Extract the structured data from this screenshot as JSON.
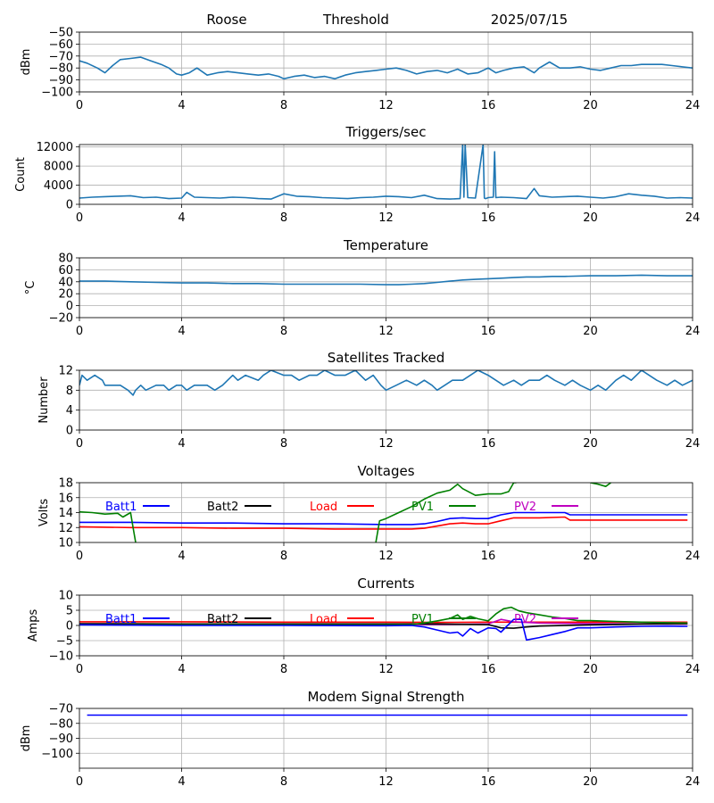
{
  "header": {
    "station": "Roose",
    "label": "Threshold",
    "date": "2025/07/15"
  },
  "chart_data": [
    {
      "id": "signal",
      "type": "line",
      "title": "",
      "xlabel": "",
      "ylabel": "dBm",
      "xlim": [
        0,
        24
      ],
      "ylim": [
        -100,
        -50
      ],
      "xticks": [
        "0",
        "4",
        "8",
        "12",
        "16",
        "20",
        "24"
      ],
      "yticks": [
        "-50",
        "-60",
        "-70",
        "-80",
        "-90",
        "-100"
      ],
      "grid": true,
      "series": [
        {
          "color": "#1f77b4",
          "x": [
            0,
            0.3,
            0.7,
            1,
            1.3,
            1.6,
            2,
            2.4,
            2.8,
            3.2,
            3.5,
            3.8,
            4,
            4.3,
            4.6,
            5,
            5.4,
            5.8,
            6.2,
            6.6,
            7,
            7.4,
            7.8,
            8,
            8.4,
            8.8,
            9.2,
            9.6,
            10,
            10.4,
            10.8,
            11.2,
            11.6,
            12,
            12.4,
            12.8,
            13.2,
            13.6,
            14,
            14.4,
            14.8,
            15.2,
            15.6,
            16,
            16.3,
            16.6,
            17,
            17.4,
            17.8,
            18,
            18.4,
            18.8,
            19.2,
            19.6,
            20,
            20.4,
            20.8,
            21.2,
            21.6,
            22,
            22.4,
            22.8,
            23.2,
            23.6,
            24
          ],
          "y": [
            -74,
            -76,
            -80,
            -84,
            -78,
            -73,
            -72,
            -71,
            -74,
            -77,
            -80,
            -85,
            -86,
            -84,
            -80,
            -86,
            -84,
            -83,
            -84,
            -85,
            -86,
            -85,
            -87,
            -89,
            -87,
            -86,
            -88,
            -87,
            -89,
            -86,
            -84,
            -83,
            -82,
            -81,
            -80,
            -82,
            -85,
            -83,
            -82,
            -84,
            -81,
            -85,
            -84,
            -80,
            -84,
            -82,
            -80,
            -79,
            -84,
            -80,
            -75,
            -80,
            -80,
            -79,
            -81,
            -82,
            -80,
            -78,
            -78,
            -77,
            -77,
            -77,
            -78,
            -79,
            -80
          ]
        }
      ]
    },
    {
      "id": "triggers",
      "type": "line",
      "title": "Triggers/sec",
      "xlabel": "",
      "ylabel": "Count",
      "xlim": [
        0,
        24
      ],
      "ylim": [
        0,
        12500
      ],
      "xticks": [
        "0",
        "4",
        "8",
        "12",
        "16",
        "20",
        "24"
      ],
      "yticks": [
        "0",
        "4000",
        "8000",
        "12000"
      ],
      "grid": true,
      "series": [
        {
          "color": "#1f77b4",
          "x": [
            0,
            0.5,
            1,
            1.5,
            2,
            2.5,
            3,
            3.5,
            4,
            4.2,
            4.5,
            5,
            5.5,
            6,
            6.5,
            7,
            7.5,
            8,
            8.5,
            9,
            9.5,
            10,
            10.5,
            11,
            11.5,
            12,
            12.5,
            13,
            13.5,
            14,
            14.5,
            14.9,
            15,
            15.05,
            15.1,
            15.2,
            15.5,
            15.8,
            15.85,
            15.9,
            16,
            16.2,
            16.25,
            16.3,
            16.5,
            17,
            17.5,
            17.8,
            18,
            18.5,
            19,
            19.5,
            20,
            20.5,
            21,
            21.5,
            22,
            22.5,
            23,
            23.5,
            24
          ],
          "y": [
            1300,
            1500,
            1600,
            1700,
            1800,
            1400,
            1500,
            1200,
            1300,
            2500,
            1500,
            1400,
            1300,
            1500,
            1400,
            1200,
            1100,
            2200,
            1700,
            1600,
            1400,
            1300,
            1200,
            1400,
            1500,
            1700,
            1600,
            1400,
            1900,
            1200,
            1100,
            1200,
            12500,
            1500,
            12500,
            1400,
            1300,
            12500,
            1300,
            1200,
            1400,
            1500,
            11000,
            1400,
            1500,
            1400,
            1200,
            3300,
            1800,
            1500,
            1600,
            1700,
            1500,
            1300,
            1600,
            2200,
            1900,
            1700,
            1300,
            1400,
            1300
          ]
        }
      ]
    },
    {
      "id": "temperature",
      "type": "line",
      "title": "Temperature",
      "xlabel": "",
      "ylabel": "°C",
      "xlim": [
        0,
        24
      ],
      "ylim": [
        -20,
        80
      ],
      "xticks": [
        "0",
        "4",
        "8",
        "12",
        "16",
        "20",
        "24"
      ],
      "yticks": [
        "-20",
        "0",
        "20",
        "40",
        "60",
        "80"
      ],
      "grid": true,
      "series": [
        {
          "color": "#1f77b4",
          "x": [
            0,
            1,
            2,
            3,
            4,
            5,
            6,
            7,
            8,
            9,
            10,
            11,
            12,
            12.5,
            13,
            13.5,
            14,
            14.5,
            15,
            15.5,
            16,
            16.5,
            17,
            17.5,
            18,
            18.5,
            19,
            20,
            21,
            22,
            23,
            24
          ],
          "y": [
            41,
            41,
            40,
            39,
            38,
            38,
            37,
            37,
            36,
            36,
            36,
            36,
            35,
            35,
            36,
            37,
            39,
            41,
            43,
            44,
            45,
            46,
            47,
            48,
            48,
            49,
            49,
            50,
            50,
            51,
            50,
            50
          ]
        }
      ]
    },
    {
      "id": "satellites",
      "type": "line",
      "title": "Satellites Tracked",
      "xlabel": "",
      "ylabel": "Number",
      "xlim": [
        0,
        24
      ],
      "ylim": [
        0,
        12
      ],
      "xticks": [
        "0",
        "4",
        "8",
        "12",
        "16",
        "20",
        "24"
      ],
      "yticks": [
        "0",
        "4",
        "8",
        "12"
      ],
      "grid": true,
      "series": [
        {
          "color": "#1f77b4",
          "x": [
            0,
            0.1,
            0.3,
            0.6,
            0.9,
            1,
            1.3,
            1.6,
            1.9,
            2.1,
            2.2,
            2.4,
            2.6,
            3,
            3.3,
            3.5,
            3.8,
            4,
            4.2,
            4.5,
            5,
            5.3,
            5.6,
            5.8,
            6,
            6.2,
            6.5,
            7,
            7.2,
            7.5,
            8,
            8.3,
            8.6,
            9,
            9.3,
            9.6,
            10,
            10.4,
            10.8,
            11.2,
            11.5,
            11.8,
            12,
            12.4,
            12.8,
            13.2,
            13.5,
            13.8,
            14,
            14.3,
            14.6,
            15,
            15.3,
            15.6,
            16,
            16.3,
            16.6,
            17,
            17.3,
            17.6,
            18,
            18.3,
            18.6,
            19,
            19.3,
            19.6,
            20,
            20.3,
            20.6,
            21,
            21.3,
            21.6,
            22,
            22.3,
            22.6,
            23,
            23.3,
            23.6,
            24
          ],
          "y": [
            9,
            11,
            10,
            11,
            10,
            9,
            9,
            9,
            8,
            7,
            8,
            9,
            8,
            9,
            9,
            8,
            9,
            9,
            8,
            9,
            9,
            8,
            9,
            10,
            11,
            10,
            11,
            10,
            11,
            12,
            11,
            11,
            10,
            11,
            11,
            12,
            11,
            11,
            12,
            10,
            11,
            9,
            8,
            9,
            10,
            9,
            10,
            9,
            8,
            9,
            10,
            10,
            11,
            12,
            11,
            10,
            9,
            10,
            9,
            10,
            10,
            11,
            10,
            9,
            10,
            9,
            8,
            9,
            8,
            10,
            11,
            10,
            12,
            11,
            10,
            9,
            10,
            9,
            10
          ]
        }
      ]
    },
    {
      "id": "voltages",
      "type": "line",
      "title": "Voltages",
      "xlabel": "",
      "ylabel": "Volts",
      "xlim": [
        0,
        24
      ],
      "ylim": [
        10,
        18
      ],
      "xticks": [
        "0",
        "4",
        "8",
        "12",
        "16",
        "20",
        "24"
      ],
      "yticks": [
        "10",
        "12",
        "14",
        "16",
        "18"
      ],
      "grid": true,
      "legend": [
        {
          "name": "Batt1",
          "color": "#0000ff"
        },
        {
          "name": "Batt2",
          "color": "#000000"
        },
        {
          "name": "Load",
          "color": "#ff0000"
        },
        {
          "name": "PV1",
          "color": "#008000"
        },
        {
          "name": "PV2",
          "color": "#bf00bf"
        }
      ],
      "series": [
        {
          "name": "Batt1",
          "color": "#0000ff",
          "x": [
            0,
            2,
            4,
            6,
            8,
            10,
            12,
            13,
            13.5,
            14,
            14.5,
            15,
            15.5,
            16,
            16.5,
            17,
            18,
            19,
            19.2,
            20,
            21,
            22,
            23,
            23.8
          ],
          "y": [
            12.7,
            12.7,
            12.6,
            12.6,
            12.5,
            12.5,
            12.4,
            12.4,
            12.5,
            12.8,
            13.2,
            13.3,
            13.2,
            13.2,
            13.7,
            14.0,
            14.0,
            14.0,
            13.7,
            13.7,
            13.7,
            13.7,
            13.7,
            13.7
          ]
        },
        {
          "name": "Load",
          "color": "#ff0000",
          "x": [
            0,
            2,
            4,
            6,
            8,
            10,
            12,
            13,
            13.5,
            14,
            14.5,
            15,
            15.5,
            16,
            16.5,
            17,
            18,
            19,
            19.2,
            20,
            21,
            22,
            23,
            23.8
          ],
          "y": [
            12.1,
            12.0,
            12.0,
            11.9,
            11.9,
            11.8,
            11.8,
            11.8,
            11.9,
            12.2,
            12.5,
            12.6,
            12.5,
            12.5,
            12.9,
            13.3,
            13.3,
            13.4,
            13.0,
            13.0,
            13.0,
            13.0,
            13.0,
            13.0
          ]
        },
        {
          "name": "PV1",
          "color": "#008000",
          "x": [
            0,
            0.5,
            1,
            1.5,
            1.7,
            2,
            2.1,
            2.2
          ],
          "y": [
            14.1,
            14.0,
            13.8,
            13.9,
            13.4,
            14.0,
            12.0,
            10.0
          ]
        },
        {
          "name": "PV1",
          "color": "#008000",
          "x": [
            11.6,
            11.75,
            12,
            12.5,
            13,
            13.5,
            14,
            14.5,
            14.8,
            15,
            15.5,
            16,
            16.5,
            16.8,
            17,
            17.1
          ],
          "y": [
            10.0,
            12.9,
            13.2,
            14.0,
            14.8,
            15.8,
            16.6,
            17.0,
            17.8,
            17.2,
            16.3,
            16.5,
            16.5,
            16.8,
            18.0,
            18.0
          ]
        },
        {
          "name": "PV1",
          "color": "#008000",
          "x": [
            20.0,
            20.3,
            20.6,
            20.8
          ],
          "y": [
            18.0,
            17.8,
            17.5,
            18.0
          ]
        }
      ]
    },
    {
      "id": "currents",
      "type": "line",
      "title": "Currents",
      "xlabel": "",
      "ylabel": "Amps",
      "xlim": [
        0,
        24
      ],
      "ylim": [
        -10,
        10
      ],
      "xticks": [
        "0",
        "4",
        "8",
        "12",
        "16",
        "20",
        "24"
      ],
      "yticks": [
        "-10",
        "-5",
        "0",
        "5",
        "10"
      ],
      "grid": true,
      "legend": [
        {
          "name": "Batt1",
          "color": "#0000ff"
        },
        {
          "name": "Batt2",
          "color": "#000000"
        },
        {
          "name": "Load",
          "color": "#ff0000"
        },
        {
          "name": "PV1",
          "color": "#008000"
        },
        {
          "name": "PV2",
          "color": "#bf00bf"
        }
      ],
      "series": [
        {
          "name": "Load",
          "color": "#ff0000",
          "x": [
            0,
            4,
            8,
            12,
            14,
            16,
            18,
            20,
            22,
            23.8
          ],
          "y": [
            1.2,
            1.2,
            1.1,
            1.1,
            1.0,
            1.1,
            1.1,
            1.1,
            1.1,
            1.1
          ]
        },
        {
          "name": "PV2",
          "color": "#bf00bf",
          "x": [
            0,
            4,
            8,
            12,
            14,
            16,
            16.5,
            17,
            18,
            20,
            22,
            23.8
          ],
          "y": [
            0.5,
            0.4,
            0.4,
            0.3,
            0.3,
            0.5,
            2.0,
            1.2,
            0.8,
            0.6,
            0.5,
            0.5
          ]
        },
        {
          "name": "Batt2",
          "color": "#000000",
          "x": [
            0,
            4,
            8,
            12,
            14,
            16,
            16.5,
            17,
            17.5,
            18,
            20,
            22,
            23.8
          ],
          "y": [
            0.6,
            0.5,
            0.5,
            0.5,
            0.5,
            0.3,
            -0.8,
            -0.9,
            -0.5,
            -0.2,
            0.2,
            0.5,
            0.6
          ]
        },
        {
          "name": "PV1",
          "color": "#008000",
          "x": [
            0,
            4,
            8,
            12,
            13,
            13.5,
            14,
            14.5,
            14.8,
            15,
            15.3,
            15.6,
            16,
            16.3,
            16.6,
            16.9,
            17.2,
            17.5,
            18,
            18.5,
            19,
            19.5,
            20,
            21,
            22,
            23,
            23.8
          ],
          "y": [
            0.2,
            0.2,
            0.2,
            0.2,
            0.3,
            0.8,
            1.5,
            2.3,
            3.5,
            2.0,
            3.0,
            2.2,
            1.5,
            3.8,
            5.5,
            6.0,
            4.8,
            4.2,
            3.5,
            2.8,
            2.3,
            1.6,
            1.6,
            1.3,
            1.1,
            0.9,
            0.8
          ]
        },
        {
          "name": "Batt1",
          "color": "#0000ff",
          "x": [
            0,
            4,
            8,
            12,
            13,
            13.5,
            14,
            14.5,
            14.8,
            15,
            15.3,
            15.6,
            16,
            16.3,
            16.5,
            17,
            17.3,
            17.5,
            18,
            18.5,
            19,
            19.5,
            20,
            21,
            22,
            23,
            23.8
          ],
          "y": [
            0.2,
            0,
            0,
            -0.1,
            0,
            -0.5,
            -1.5,
            -2.5,
            -2.2,
            -3.5,
            -1.0,
            -2.5,
            -0.8,
            -1.0,
            -2.2,
            2.0,
            2.0,
            -4.8,
            -4.0,
            -3.0,
            -2.0,
            -0.8,
            -0.8,
            -0.5,
            -0.3,
            -0.2,
            -0.3
          ]
        }
      ]
    },
    {
      "id": "modem",
      "type": "line",
      "title": "Modem Signal Strength",
      "xlabel": "",
      "ylabel": "dBm",
      "xlim": [
        0,
        24
      ],
      "ylim": [
        -110,
        -70
      ],
      "xticks": [
        "0",
        "4",
        "8",
        "12",
        "16",
        "20",
        "24"
      ],
      "yticks": [
        "-70",
        "-80",
        "-90",
        "-100"
      ],
      "grid": true,
      "series": [
        {
          "color": "#0000ff",
          "x": [
            0.3,
            23.8
          ],
          "y": [
            -74.5,
            -74.5
          ]
        }
      ]
    }
  ]
}
